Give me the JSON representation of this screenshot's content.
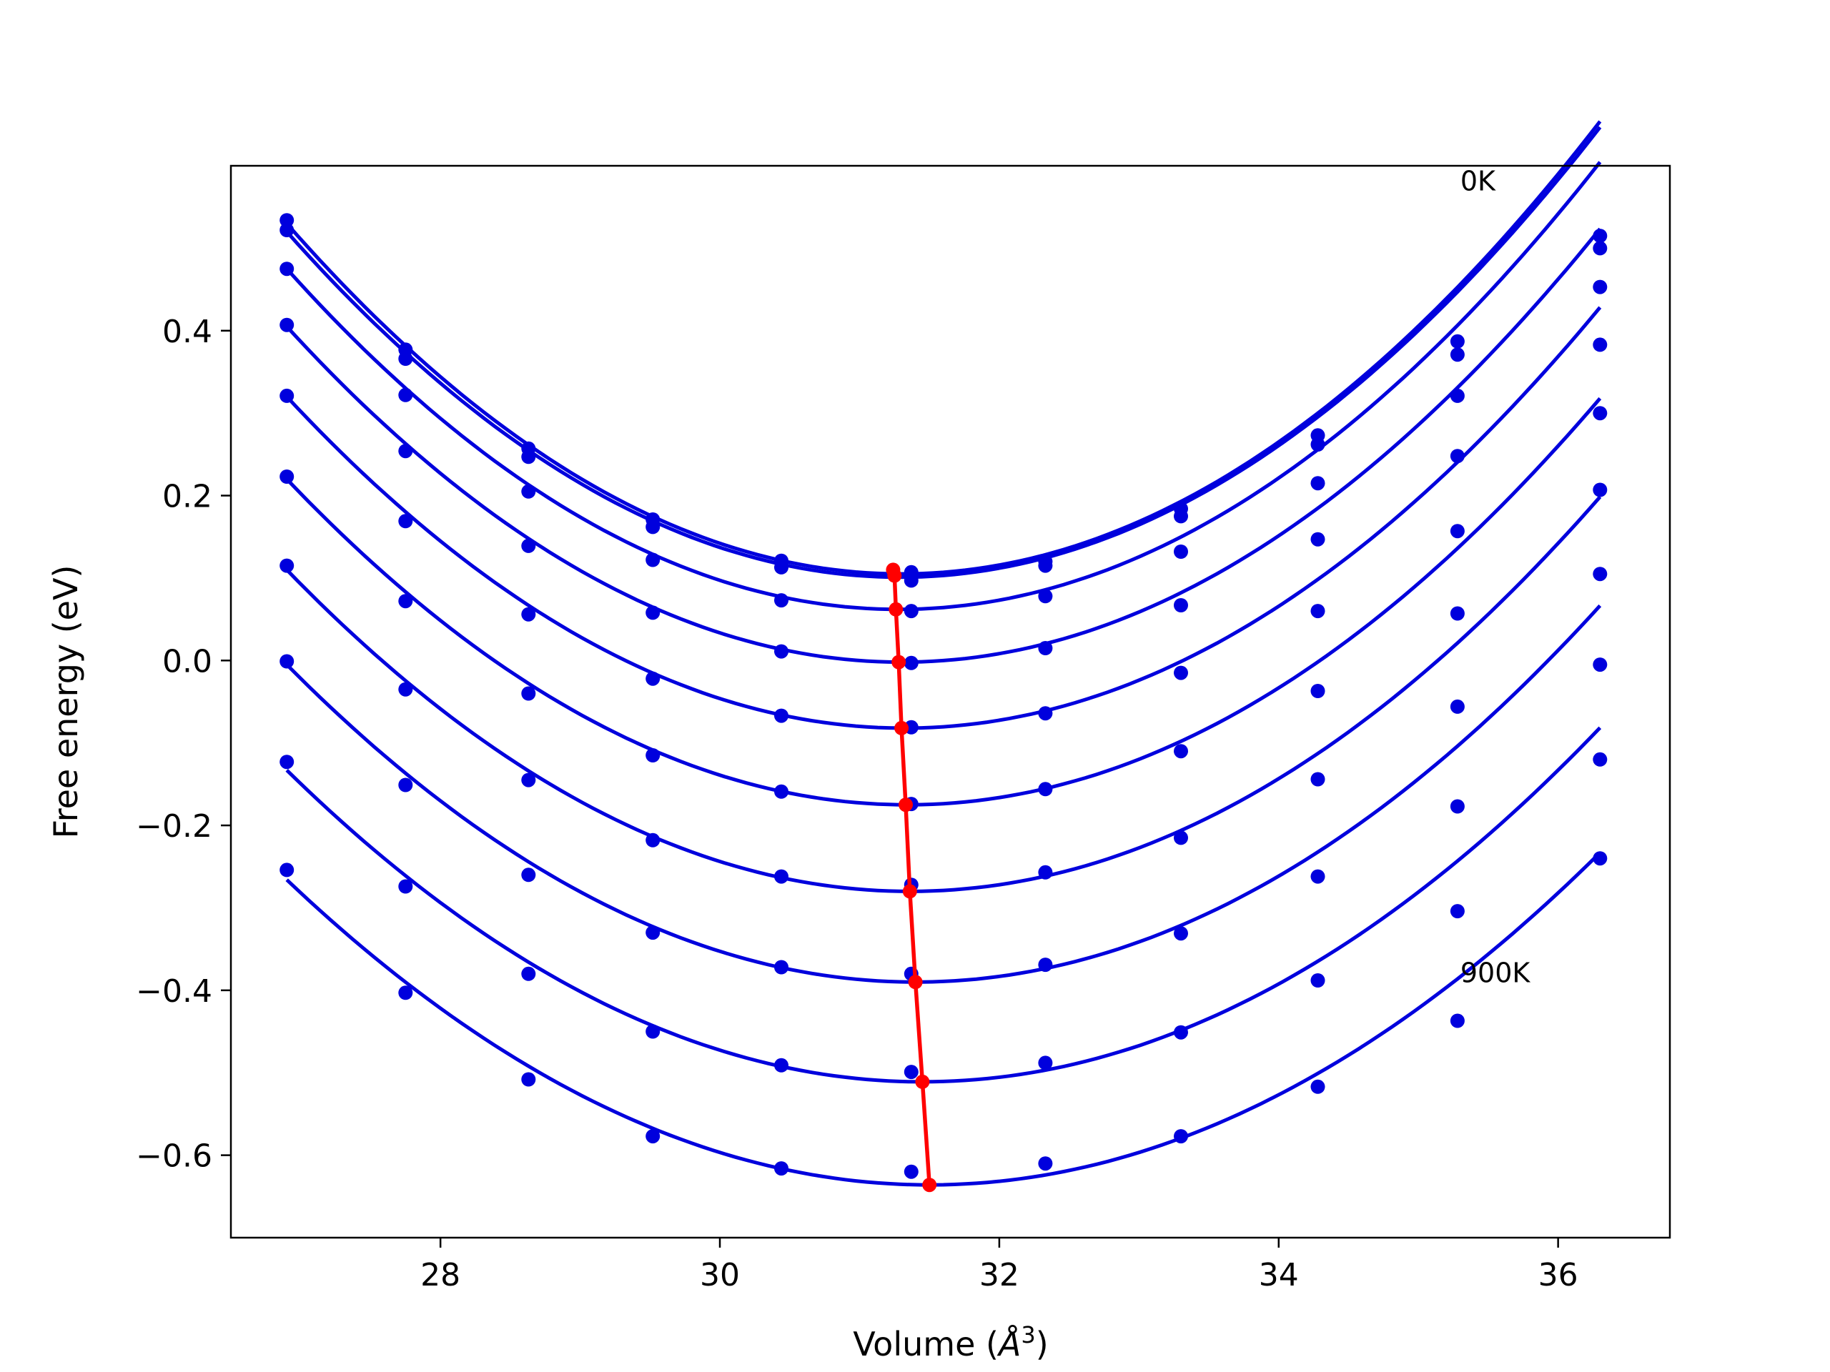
{
  "chart_data": {
    "type": "line",
    "title": "",
    "xlabel": "Volume (",
    "xlabel_symbol": "Å",
    "xlabel_exp": "3",
    "xlabel_close": ")",
    "ylabel": "Free energy (eV)",
    "xlim": [
      26.5,
      36.8
    ],
    "ylim": [
      -0.7,
      0.6
    ],
    "xticks": [
      28,
      30,
      32,
      34,
      36
    ],
    "xtick_labels": [
      "28",
      "30",
      "32",
      "34",
      "36"
    ],
    "yticks": [
      -0.6,
      -0.4,
      -0.2,
      0.0,
      0.2,
      0.4
    ],
    "ytick_labels": [
      "−0.6",
      "−0.4",
      "−0.2",
      "0.0",
      "0.2",
      "0.4"
    ],
    "grid": false,
    "annotations": [
      {
        "text": "0K",
        "x": 35.3,
        "y": 0.57
      },
      {
        "text": "900K",
        "x": 35.3,
        "y": -0.39
      }
    ],
    "volumes": [
      26.9,
      27.75,
      28.63,
      29.52,
      30.44,
      31.37,
      32.33,
      33.3,
      34.28,
      35.28,
      36.3
    ],
    "curve_color": "#0000dd",
    "min_line_color": "#ff0000",
    "series": [
      {
        "fit": [
          0.53,
          0.105,
          31.3
        ],
        "points": [
          0.534,
          0.377,
          0.257,
          0.171,
          0.121,
          0.107,
          0.12,
          0.184,
          0.273,
          0.387,
          0.515
        ]
      },
      {
        "fit": [
          0.52,
          0.101,
          31.29
        ],
        "points": [
          0.522,
          0.366,
          0.247,
          0.162,
          0.113,
          0.097,
          0.115,
          0.175,
          0.262,
          0.371,
          0.5
        ]
      },
      {
        "fit": [
          0.475,
          0.062,
          31.28
        ],
        "points": [
          0.475,
          0.322,
          0.205,
          0.122,
          0.073,
          0.06,
          0.078,
          0.132,
          0.215,
          0.321,
          0.453
        ]
      },
      {
        "fit": [
          0.405,
          -0.002,
          31.3
        ],
        "points": [
          0.407,
          0.254,
          0.139,
          0.058,
          0.011,
          -0.003,
          0.015,
          0.067,
          0.147,
          0.248,
          0.383
        ]
      },
      {
        "fit": [
          0.32,
          -0.082,
          31.32
        ],
        "points": [
          0.321,
          0.169,
          0.056,
          -0.022,
          -0.067,
          -0.081,
          -0.064,
          -0.015,
          0.06,
          0.157,
          0.3
        ]
      },
      {
        "fit": [
          0.22,
          -0.175,
          31.34
        ],
        "points": [
          0.223,
          0.072,
          -0.04,
          -0.115,
          -0.159,
          -0.174,
          -0.156,
          -0.11,
          -0.037,
          0.057,
          0.207
        ]
      },
      {
        "fit": [
          0.11,
          -0.28,
          31.36
        ],
        "points": [
          0.115,
          -0.035,
          -0.145,
          -0.218,
          -0.262,
          -0.272,
          -0.257,
          -0.215,
          -0.144,
          -0.056,
          0.105
        ]
      },
      {
        "fit": [
          -0.005,
          -0.39,
          31.4
        ],
        "points": [
          -0.001,
          -0.151,
          -0.26,
          -0.33,
          -0.372,
          -0.38,
          -0.369,
          -0.331,
          -0.262,
          -0.177,
          -0.005
        ]
      },
      {
        "fit": [
          -0.133,
          -0.511,
          31.45
        ],
        "points": [
          -0.123,
          -0.274,
          -0.38,
          -0.45,
          -0.491,
          -0.499,
          -0.488,
          -0.451,
          -0.388,
          -0.304,
          -0.12
        ]
      },
      {
        "fit": [
          -0.266,
          -0.636,
          31.5
        ],
        "points": [
          -0.254,
          -0.403,
          -0.508,
          -0.577,
          -0.616,
          -0.62,
          -0.61,
          -0.577,
          -0.517,
          -0.437,
          -0.24
        ]
      }
    ],
    "minima": [
      {
        "x": 31.24,
        "y": 0.11
      },
      {
        "x": 31.25,
        "y": 0.103
      },
      {
        "x": 31.26,
        "y": 0.062
      },
      {
        "x": 31.28,
        "y": -0.002
      },
      {
        "x": 31.3,
        "y": -0.082
      },
      {
        "x": 31.33,
        "y": -0.175
      },
      {
        "x": 31.36,
        "y": -0.28
      },
      {
        "x": 31.4,
        "y": -0.39
      },
      {
        "x": 31.45,
        "y": -0.511
      },
      {
        "x": 31.5,
        "y": -0.636
      }
    ]
  }
}
